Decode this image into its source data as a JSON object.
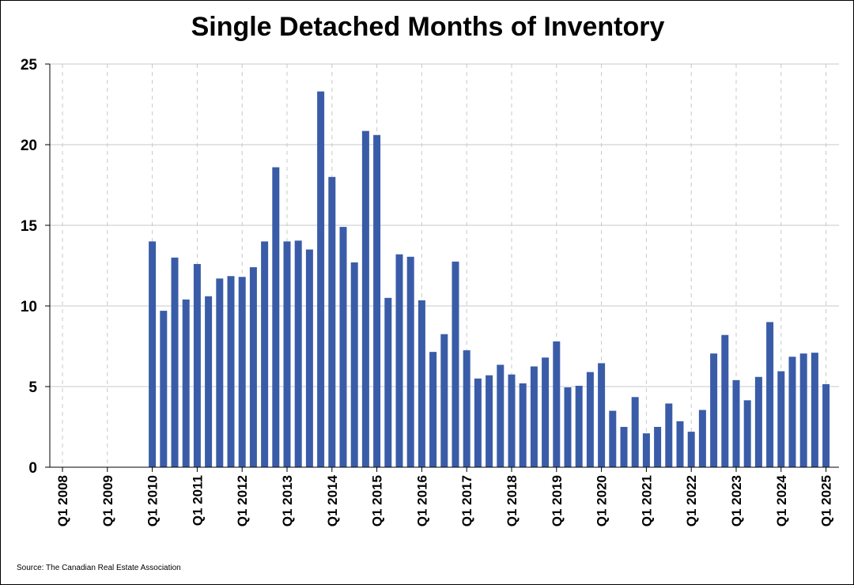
{
  "chart_data": {
    "type": "bar",
    "title": "Single Detached Months of Inventory",
    "source": "Source: The Canadian Real Estate Association",
    "xlabel": "",
    "ylabel": "",
    "ylim": [
      0,
      25
    ],
    "yticks": [
      0,
      5,
      10,
      15,
      20,
      25
    ],
    "x_tick_labels": [
      "Q1 2008",
      "Q1 2009",
      "Q1 2010",
      "Q1 2011",
      "Q1 2012",
      "Q1 2013",
      "Q1 2014",
      "Q1 2015",
      "Q1 2016",
      "Q1 2017",
      "Q1 2018",
      "Q1 2019",
      "Q1 2020",
      "Q1 2021",
      "Q1 2022",
      "Q1 2023",
      "Q1 2024",
      "Q1 2025"
    ],
    "grid": {
      "horizontal": true,
      "vertical": "dashed"
    },
    "bar_color": "#3a5ca8",
    "quarters": [
      "Q1 2008",
      "Q2 2008",
      "Q3 2008",
      "Q4 2008",
      "Q1 2009",
      "Q2 2009",
      "Q3 2009",
      "Q4 2009",
      "Q1 2010",
      "Q2 2010",
      "Q3 2010",
      "Q4 2010",
      "Q1 2011",
      "Q2 2011",
      "Q3 2011",
      "Q4 2011",
      "Q1 2012",
      "Q2 2012",
      "Q3 2012",
      "Q4 2012",
      "Q1 2013",
      "Q2 2013",
      "Q3 2013",
      "Q4 2013",
      "Q1 2014",
      "Q2 2014",
      "Q3 2014",
      "Q4 2014",
      "Q1 2015",
      "Q2 2015",
      "Q3 2015",
      "Q4 2015",
      "Q1 2016",
      "Q2 2016",
      "Q3 2016",
      "Q4 2016",
      "Q1 2017",
      "Q2 2017",
      "Q3 2017",
      "Q4 2017",
      "Q1 2018",
      "Q2 2018",
      "Q3 2018",
      "Q4 2018",
      "Q1 2019",
      "Q2 2019",
      "Q3 2019",
      "Q4 2019",
      "Q1 2020",
      "Q2 2020",
      "Q3 2020",
      "Q4 2020",
      "Q1 2021",
      "Q2 2021",
      "Q3 2021",
      "Q4 2021",
      "Q1 2022",
      "Q2 2022",
      "Q3 2022",
      "Q4 2022",
      "Q1 2023",
      "Q2 2023",
      "Q3 2023",
      "Q4 2023",
      "Q1 2024",
      "Q2 2024",
      "Q3 2024",
      "Q4 2024",
      "Q1 2025"
    ],
    "values": [
      null,
      null,
      null,
      null,
      null,
      null,
      null,
      null,
      14.0,
      9.7,
      13.0,
      10.4,
      12.6,
      10.6,
      11.7,
      11.85,
      11.8,
      12.4,
      14.0,
      18.6,
      14.0,
      14.05,
      13.5,
      23.3,
      18.0,
      14.9,
      12.7,
      20.85,
      20.6,
      10.5,
      13.2,
      13.05,
      10.35,
      7.15,
      8.25,
      12.75,
      7.25,
      5.5,
      5.7,
      6.35,
      5.75,
      5.2,
      6.25,
      6.8,
      7.8,
      4.95,
      5.05,
      5.9,
      6.45,
      3.5,
      2.5,
      4.35,
      2.1,
      2.5,
      3.95,
      2.85,
      2.2,
      3.55,
      7.05,
      8.2,
      5.4,
      4.15,
      5.6,
      9.0,
      5.95,
      6.85,
      7.05,
      7.1,
      5.15
    ]
  }
}
